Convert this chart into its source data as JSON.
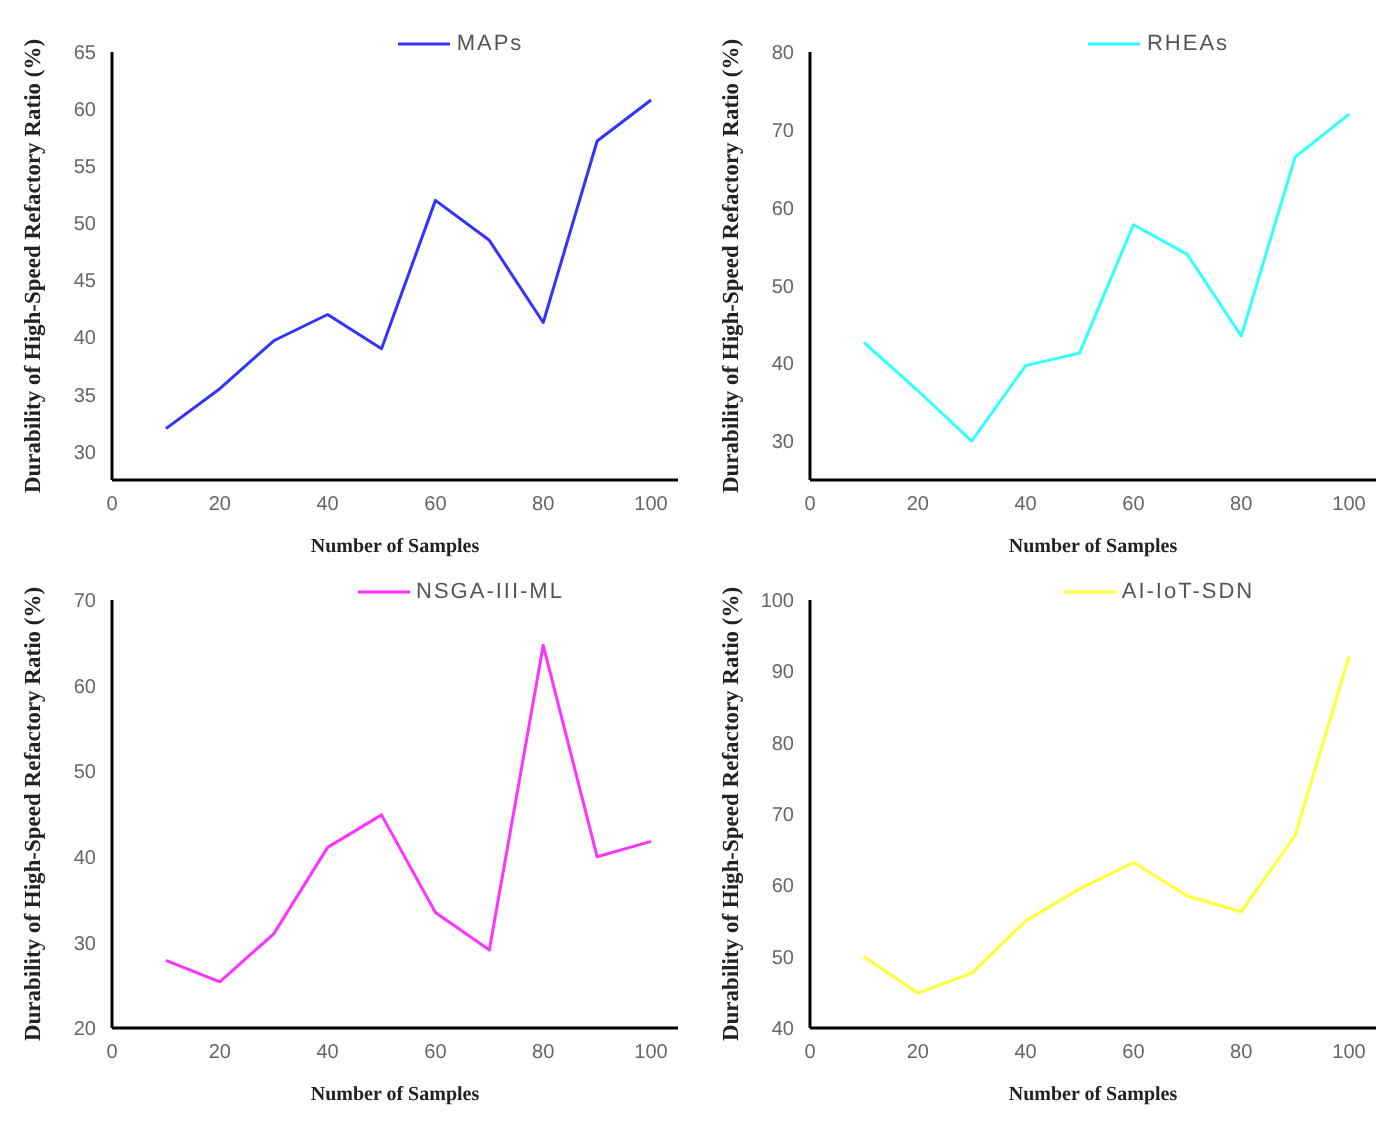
{
  "chart_data": [
    {
      "type": "line",
      "xlabel": "Number of Samples",
      "ylabel": "Durability of High-Speed Refactory Ratio (%)",
      "x": [
        10,
        20,
        30,
        40,
        50,
        60,
        70,
        80,
        90,
        100
      ],
      "xlim": [
        0,
        105
      ],
      "xticks": [
        0,
        20,
        40,
        60,
        80,
        100
      ],
      "ylim": [
        27.5,
        65
      ],
      "yticks": [
        30,
        35,
        40,
        45,
        50,
        55,
        60,
        65
      ],
      "grid": false,
      "legend": "top",
      "marker": "none",
      "series": [
        {
          "name": "MAPs",
          "color": "#3333ff",
          "values": [
            32,
            35.5,
            39.7,
            42,
            39,
            52,
            48.5,
            41.3,
            57.2,
            60.8
          ]
        }
      ]
    },
    {
      "type": "line",
      "xlabel": "Number of Samples",
      "ylabel": "Durability of High-Speed Refactory Ratio (%)",
      "x": [
        10,
        20,
        30,
        40,
        50,
        60,
        70,
        80,
        90,
        100
      ],
      "xlim": [
        0,
        105
      ],
      "xticks": [
        0,
        20,
        40,
        60,
        80,
        100
      ],
      "ylim": [
        25,
        80
      ],
      "yticks": [
        30,
        40,
        50,
        60,
        70,
        80
      ],
      "grid": false,
      "legend": "top",
      "marker": "none",
      "series": [
        {
          "name": "RHEAs",
          "color": "#33ffff",
          "values": [
            42.7,
            36.5,
            30,
            39.7,
            41.3,
            57.8,
            54,
            43.5,
            66.5,
            72
          ]
        }
      ]
    },
    {
      "type": "line",
      "xlabel": "Number of Samples",
      "ylabel": "Durability of High-Speed Refactory Ratio (%)",
      "x": [
        10,
        20,
        30,
        40,
        50,
        60,
        70,
        80,
        90,
        100
      ],
      "xlim": [
        0,
        105
      ],
      "xticks": [
        0,
        20,
        40,
        60,
        80,
        100
      ],
      "ylim": [
        20,
        70
      ],
      "yticks": [
        20,
        30,
        40,
        50,
        60,
        70
      ],
      "grid": false,
      "legend": "top",
      "marker": "none",
      "series": [
        {
          "name": "NSGA-III-ML",
          "color": "#ff33ff",
          "values": [
            27.9,
            25.4,
            31,
            41.1,
            44.9,
            33.5,
            29.1,
            64.7,
            40,
            41.8
          ]
        }
      ]
    },
    {
      "type": "line",
      "xlabel": "Number of Samples",
      "ylabel": "Durability of High-Speed Refactory Ratio (%)",
      "x": [
        10,
        20,
        30,
        40,
        50,
        60,
        70,
        80,
        90,
        100
      ],
      "xlim": [
        0,
        105
      ],
      "xticks": [
        0,
        20,
        40,
        60,
        80,
        100
      ],
      "ylim": [
        40,
        100
      ],
      "yticks": [
        40,
        50,
        60,
        70,
        80,
        90,
        100
      ],
      "grid": false,
      "legend": "top",
      "marker": "none",
      "series": [
        {
          "name": "AI-IoT-SDN",
          "color": "#ffff33",
          "values": [
            50,
            44.9,
            47.7,
            55,
            59.5,
            63.2,
            58.5,
            56.3,
            67,
            92.1
          ]
        }
      ]
    }
  ]
}
